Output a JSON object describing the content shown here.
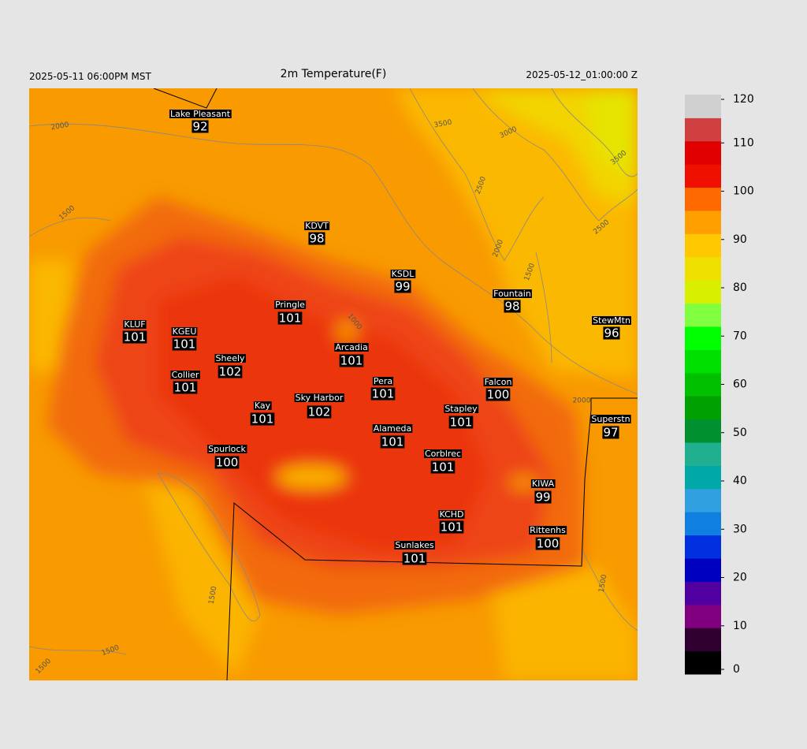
{
  "header": {
    "left": "2025-05-11 06:00PM MST",
    "title": "2m Temperature(F)",
    "right": "2025-05-12_01:00:00 Z"
  },
  "stations": [
    {
      "name": "Lake Pleasant",
      "value": 92
    },
    {
      "name": "KDVT",
      "value": 98
    },
    {
      "name": "KSDL",
      "value": 99
    },
    {
      "name": "Fountain",
      "value": 98
    },
    {
      "name": "StewMtn",
      "value": 96
    },
    {
      "name": "Pringle",
      "value": 101
    },
    {
      "name": "KLUF",
      "value": 101
    },
    {
      "name": "KGEU",
      "value": 101
    },
    {
      "name": "Arcadia",
      "value": 101
    },
    {
      "name": "Sheely",
      "value": 102
    },
    {
      "name": "Collier",
      "value": 101
    },
    {
      "name": "Pera",
      "value": 101
    },
    {
      "name": "Falcon",
      "value": 100
    },
    {
      "name": "Sky Harbor",
      "value": 102
    },
    {
      "name": "Kay",
      "value": 101
    },
    {
      "name": "Stapley",
      "value": 101
    },
    {
      "name": "Superstn",
      "value": 97
    },
    {
      "name": "Alameda",
      "value": 101
    },
    {
      "name": "Spurlock",
      "value": 100
    },
    {
      "name": "Corblrec",
      "value": 101
    },
    {
      "name": "KIWA",
      "value": 99
    },
    {
      "name": "KCHD",
      "value": 101
    },
    {
      "name": "Rittenhs",
      "value": 100
    },
    {
      "name": "Sunlakes",
      "value": 101
    }
  ],
  "contour_labels": [
    2000,
    3500,
    3000,
    2500,
    1500,
    2000,
    1500,
    2500,
    3500,
    2000,
    1500,
    1500,
    1500,
    1500,
    1000
  ],
  "colorbar": {
    "range": [
      0,
      120
    ],
    "ticks": [
      0,
      10,
      20,
      30,
      40,
      50,
      60,
      70,
      80,
      90,
      100,
      110,
      120
    ],
    "colors": [
      "#000000",
      "#300030",
      "#800080",
      "#5000a0",
      "#0000c0",
      "#0030e0",
      "#1080e0",
      "#30a0e0",
      "#00a8a8",
      "#20b090",
      "#009030",
      "#00a000",
      "#00c000",
      "#00e000",
      "#00ff00",
      "#80ff40",
      "#d8f000",
      "#f0e000",
      "#ffc800",
      "#ffa000",
      "#ff6a00",
      "#f01000",
      "#e00000",
      "#d04040",
      "#d0d0d0"
    ]
  }
}
